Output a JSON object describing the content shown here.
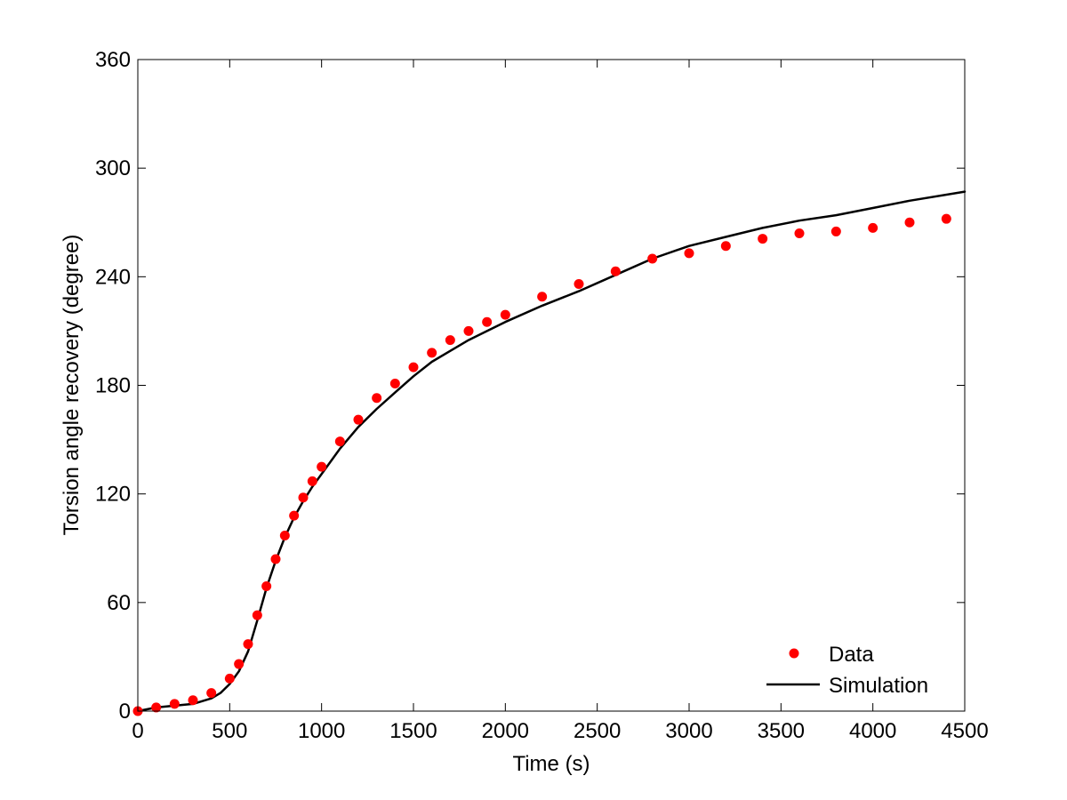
{
  "chart_data": {
    "type": "scatter",
    "xlabel": "Time (s)",
    "ylabel": "Torsion angle recovery (degree)",
    "xlim": [
      0,
      4500
    ],
    "ylim": [
      0,
      360
    ],
    "xticks": [
      0,
      500,
      1000,
      1500,
      2000,
      2500,
      3000,
      3500,
      4000,
      4500
    ],
    "yticks": [
      0,
      60,
      120,
      180,
      240,
      300,
      360
    ],
    "grid": false,
    "legend_position": "bottom-right",
    "series": [
      {
        "name": "Data",
        "kind": "markers",
        "color": "#ff0000",
        "points": [
          [
            0,
            0
          ],
          [
            100,
            2
          ],
          [
            200,
            4
          ],
          [
            300,
            6
          ],
          [
            400,
            10
          ],
          [
            500,
            18
          ],
          [
            550,
            26
          ],
          [
            600,
            37
          ],
          [
            650,
            53
          ],
          [
            700,
            69
          ],
          [
            750,
            84
          ],
          [
            800,
            97
          ],
          [
            850,
            108
          ],
          [
            900,
            118
          ],
          [
            950,
            127
          ],
          [
            1000,
            135
          ],
          [
            1100,
            149
          ],
          [
            1200,
            161
          ],
          [
            1300,
            173
          ],
          [
            1400,
            181
          ],
          [
            1500,
            190
          ],
          [
            1600,
            198
          ],
          [
            1700,
            205
          ],
          [
            1800,
            210
          ],
          [
            1900,
            215
          ],
          [
            2000,
            219
          ],
          [
            2200,
            229
          ],
          [
            2400,
            236
          ],
          [
            2600,
            243
          ],
          [
            2800,
            250
          ],
          [
            3000,
            253
          ],
          [
            3200,
            257
          ],
          [
            3400,
            261
          ],
          [
            3600,
            264
          ],
          [
            3800,
            265
          ],
          [
            4000,
            267
          ],
          [
            4200,
            270
          ],
          [
            4400,
            272
          ]
        ]
      },
      {
        "name": "Simulation",
        "kind": "line",
        "color": "#000000",
        "points": [
          [
            0,
            0
          ],
          [
            100,
            2
          ],
          [
            200,
            3
          ],
          [
            300,
            4
          ],
          [
            400,
            7
          ],
          [
            450,
            10
          ],
          [
            500,
            15
          ],
          [
            550,
            22
          ],
          [
            600,
            33
          ],
          [
            650,
            50
          ],
          [
            700,
            68
          ],
          [
            750,
            83
          ],
          [
            800,
            96
          ],
          [
            850,
            107
          ],
          [
            900,
            116
          ],
          [
            950,
            124
          ],
          [
            1000,
            131
          ],
          [
            1100,
            145
          ],
          [
            1200,
            157
          ],
          [
            1300,
            167
          ],
          [
            1400,
            176
          ],
          [
            1500,
            185
          ],
          [
            1600,
            193
          ],
          [
            1700,
            199
          ],
          [
            1800,
            205
          ],
          [
            1900,
            210
          ],
          [
            2000,
            215
          ],
          [
            2200,
            224
          ],
          [
            2400,
            232
          ],
          [
            2600,
            241
          ],
          [
            2800,
            250
          ],
          [
            3000,
            257
          ],
          [
            3200,
            262
          ],
          [
            3400,
            267
          ],
          [
            3600,
            271
          ],
          [
            3800,
            274
          ],
          [
            4000,
            278
          ],
          [
            4200,
            282
          ],
          [
            4500,
            287
          ]
        ]
      }
    ]
  }
}
